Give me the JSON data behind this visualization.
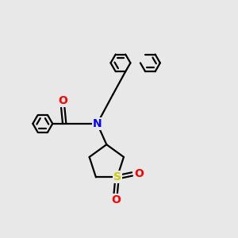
{
  "bg_color": "#e8e8e8",
  "atom_colors": {
    "N": "#0000ff",
    "O": "#ff0000",
    "S": "#cccc00",
    "C": "#000000"
  },
  "bond_color": "#000000",
  "bond_width": 1.6,
  "dbo": 0.018
}
